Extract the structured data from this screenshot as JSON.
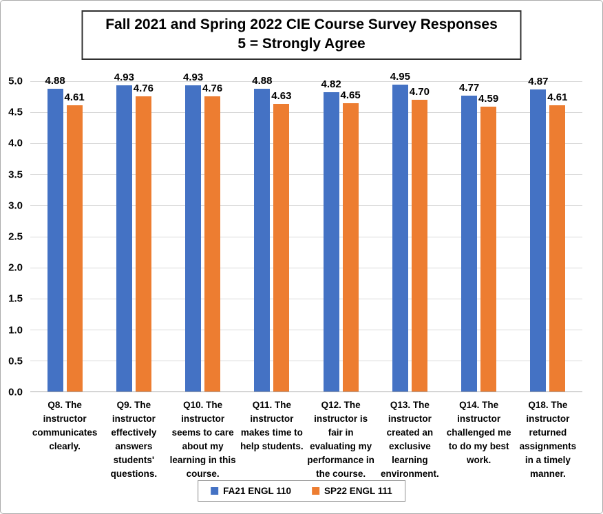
{
  "chart_data": {
    "type": "bar",
    "title": "Fall 2021 and Spring 2022 CIE Course Survey Responses",
    "subtitle": "5 = Strongly Agree",
    "categories": [
      "Q8. The instructor communicates clearly.",
      "Q9. The instructor effectively answers students' questions.",
      "Q10. The instructor seems to care about my learning in this course.",
      "Q11. The instructor makes time to help students.",
      "Q12. The instructor is fair in evaluating my performance in the course.",
      "Q13. The instructor created an exclusive learning environment.",
      "Q14. The instructor challenged me to do my best work.",
      "Q18. The instructor returned assignments in a timely manner."
    ],
    "series": [
      {
        "name": "FA21 ENGL 110",
        "color": "#4472C4",
        "values": [
          4.88,
          4.93,
          4.93,
          4.88,
          4.82,
          4.95,
          4.77,
          4.87
        ]
      },
      {
        "name": "SP22 ENGL 111",
        "color": "#ED7D31",
        "values": [
          4.61,
          4.76,
          4.76,
          4.63,
          4.65,
          4.7,
          4.59,
          4.61
        ]
      }
    ],
    "ylim": [
      0,
      5
    ],
    "ytick_step": 0.5,
    "yticks": [
      "0.0",
      "0.5",
      "1.0",
      "1.5",
      "2.0",
      "2.5",
      "3.0",
      "3.5",
      "4.0",
      "4.5",
      "5.0"
    ],
    "grid": true,
    "legend_position": "bottom",
    "value_label_decimals": 2
  }
}
